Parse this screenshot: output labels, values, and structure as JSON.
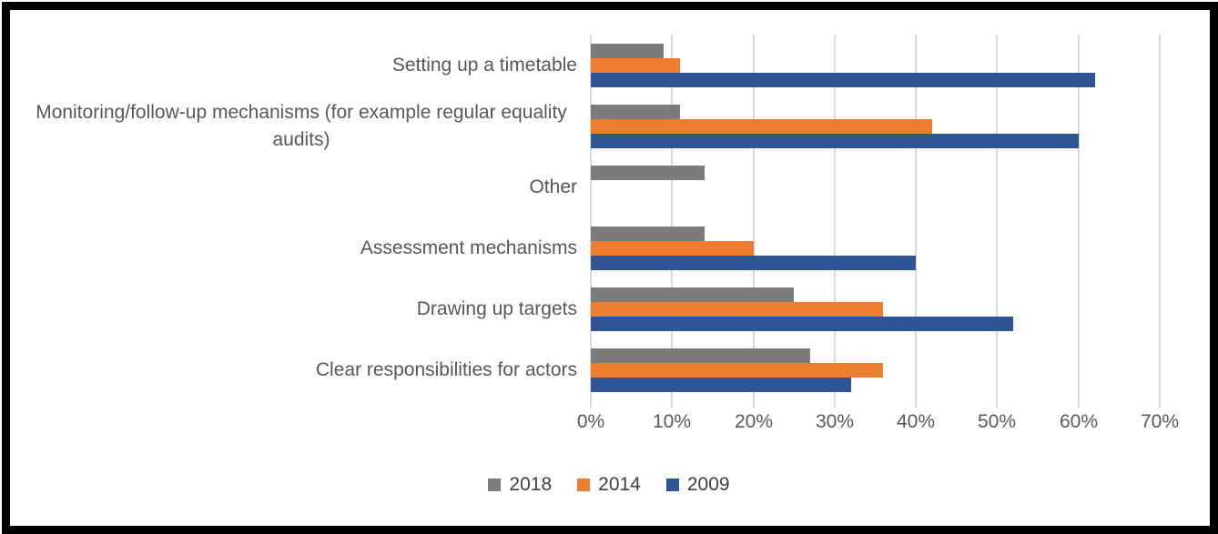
{
  "chart_data": {
    "type": "bar",
    "orientation": "horizontal",
    "title": "",
    "xlabel": "",
    "ylabel": "",
    "categories": [
      "Setting up a timetable",
      "Monitoring/follow-up mechanisms (for example regular equality audits)",
      "Other",
      "Assessment mechanisms",
      "Drawing up targets",
      "Clear responsibilities for actors"
    ],
    "series": [
      {
        "name": "2018",
        "color": "#7B7B7B",
        "values": [
          9,
          11,
          14,
          14,
          25,
          27
        ]
      },
      {
        "name": "2014",
        "color": "#ED7D31",
        "values": [
          11,
          42,
          0,
          20,
          36,
          36
        ]
      },
      {
        "name": "2009",
        "color": "#2F5597",
        "values": [
          62,
          60,
          0,
          40,
          52,
          32
        ]
      }
    ],
    "x_ticks": [
      "0%",
      "10%",
      "20%",
      "30%",
      "40%",
      "50%",
      "60%",
      "70%"
    ],
    "xlim": [
      0,
      70
    ],
    "grid": true,
    "legend_position": "bottom",
    "gridline_color": "#D9D9D9",
    "tick_label_color": "#595959",
    "category_label_color": "#575757",
    "background": "#FFFFFF",
    "frame_border_color": "#000000"
  }
}
